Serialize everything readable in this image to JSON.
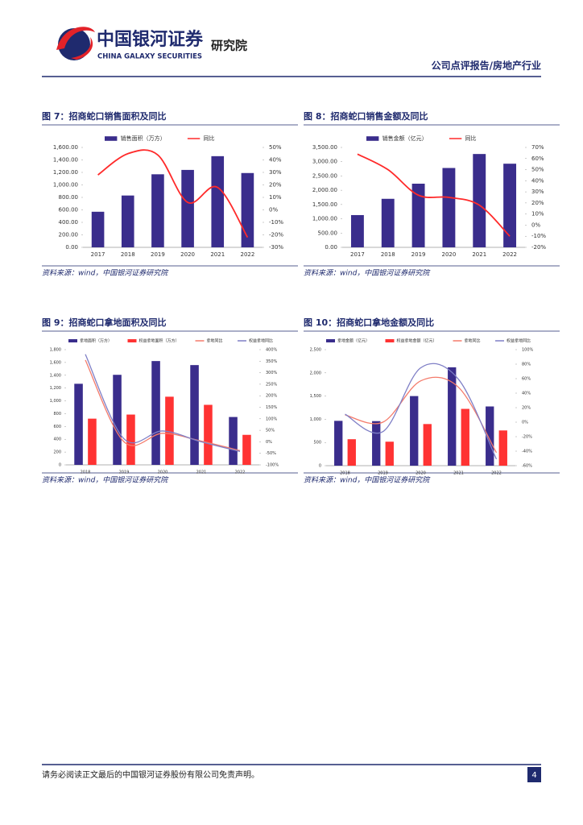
{
  "header": {
    "brand": "中国银河证券",
    "brand_en": "CHINA GALAXY SECURITIES",
    "institute": "研究院",
    "report_type": "公司点评报告/房地产行业"
  },
  "chart_data": [
    {
      "type": "combo",
      "title": "图 7：招商蛇口销售面积及同比",
      "source": "资料来源：wind，中国银河证券研究院",
      "categories": [
        "2017",
        "2018",
        "2019",
        "2020",
        "2021",
        "2022"
      ],
      "series": [
        {
          "name": "销售面积（万方）",
          "type": "bar",
          "color": "#3a2d8c",
          "values": [
            570,
            830,
            1170,
            1240,
            1460,
            1190
          ]
        },
        {
          "name": "同比",
          "type": "line",
          "color": "#ff2a2a",
          "axis": "y2",
          "values": [
            28,
            45,
            44,
            6,
            18,
            -22
          ]
        }
      ],
      "ylim": [
        0,
        1600
      ],
      "yticks": [
        {
          "value": 0,
          "label": "0.00"
        },
        {
          "value": 200,
          "label": "200.00"
        },
        {
          "value": 400,
          "label": "400.00"
        },
        {
          "value": 600,
          "label": "600.00"
        },
        {
          "value": 800,
          "label": "800.00"
        },
        {
          "value": 1000,
          "label": "1,000.00"
        },
        {
          "value": 1200,
          "label": "1,200.00"
        },
        {
          "value": 1400,
          "label": "1,400.00"
        },
        {
          "value": 1600,
          "label": "1,600.00"
        }
      ],
      "y2lim": [
        -30,
        50
      ],
      "y2ticks": [
        {
          "value": -30,
          "label": "-30%"
        },
        {
          "value": -20,
          "label": "-20%"
        },
        {
          "value": -10,
          "label": "-10%"
        },
        {
          "value": 0,
          "label": "0%"
        },
        {
          "value": 10,
          "label": "10%"
        },
        {
          "value": 20,
          "label": "20%"
        },
        {
          "value": 30,
          "label": "30%"
        },
        {
          "value": 40,
          "label": "40%"
        },
        {
          "value": 50,
          "label": "50%"
        }
      ]
    },
    {
      "type": "combo",
      "title": "图 8：招商蛇口销售金额及同比",
      "source": "资料来源：wind，中国银河证券研究院",
      "categories": [
        "2017",
        "2018",
        "2019",
        "2020",
        "2021",
        "2022"
      ],
      "series": [
        {
          "name": "销售金额（亿元）",
          "type": "bar",
          "color": "#3a2d8c",
          "values": [
            1130,
            1700,
            2230,
            2780,
            3270,
            2930
          ]
        },
        {
          "name": "同比",
          "type": "line",
          "color": "#ff2a2a",
          "axis": "y2",
          "values": [
            64,
            50,
            27,
            25,
            18,
            -10
          ]
        }
      ],
      "ylim": [
        0,
        3500
      ],
      "yticks": [
        {
          "value": 0,
          "label": "0.00"
        },
        {
          "value": 500,
          "label": "500.00"
        },
        {
          "value": 1000,
          "label": "1,000.00"
        },
        {
          "value": 1500,
          "label": "1,500.00"
        },
        {
          "value": 2000,
          "label": "2,000.00"
        },
        {
          "value": 2500,
          "label": "2,500.00"
        },
        {
          "value": 3000,
          "label": "3,000.00"
        },
        {
          "value": 3500,
          "label": "3,500.00"
        }
      ],
      "y2lim": [
        -20,
        70
      ],
      "y2ticks": [
        {
          "value": -20,
          "label": "-20%"
        },
        {
          "value": -10,
          "label": "-10%"
        },
        {
          "value": 0,
          "label": "0%"
        },
        {
          "value": 10,
          "label": "10%"
        },
        {
          "value": 20,
          "label": "20%"
        },
        {
          "value": 30,
          "label": "30%"
        },
        {
          "value": 40,
          "label": "40%"
        },
        {
          "value": 50,
          "label": "50%"
        },
        {
          "value": 60,
          "label": "60%"
        },
        {
          "value": 70,
          "label": "70%"
        }
      ]
    },
    {
      "type": "combo",
      "title": "图 9：招商蛇口拿地面积及同比",
      "source": "资料来源：wind，中国银河证券研究院",
      "categories": [
        "2018",
        "2019",
        "2020",
        "2021",
        "2022"
      ],
      "series": [
        {
          "name": "拿地面积（万方）",
          "type": "bar",
          "color": "#3a2d8c",
          "values": [
            1267,
            1407,
            1622,
            1559,
            748
          ]
        },
        {
          "name": "权益拿地面积（万方）",
          "type": "bar",
          "color": "#ff3333",
          "values": [
            722,
            786,
            1065,
            938,
            469
          ]
        },
        {
          "name": "拿地同比",
          "type": "line",
          "color": "#f47b6b",
          "axis": "y2",
          "values": [
            355,
            0,
            37,
            3,
            -38
          ]
        },
        {
          "name": "权益拿地同比",
          "type": "line",
          "color": "#7f7fc6",
          "axis": "y2",
          "values": [
            380,
            13,
            47,
            0,
            -42
          ]
        }
      ],
      "ylim": [
        0,
        1800
      ],
      "yticks": [
        0,
        200,
        400,
        600,
        800,
        {
          "value": 1000,
          "label": "1,000"
        },
        {
          "value": 1200,
          "label": "1,200"
        },
        {
          "value": 1400,
          "label": "1,400"
        },
        {
          "value": 1600,
          "label": "1,600"
        },
        {
          "value": 1800,
          "label": "1,800"
        }
      ],
      "y2lim": [
        -100,
        400
      ],
      "y2ticks": [
        {
          "value": -100,
          "label": "-100%"
        },
        {
          "value": -50,
          "label": "-50%"
        },
        {
          "value": 0,
          "label": "0%"
        },
        {
          "value": 50,
          "label": "50%"
        },
        {
          "value": 100,
          "label": "100%"
        },
        {
          "value": 150,
          "label": "150%"
        },
        {
          "value": 200,
          "label": "200%"
        },
        {
          "value": 250,
          "label": "250%"
        },
        {
          "value": 300,
          "label": "300%"
        },
        {
          "value": 350,
          "label": "350%"
        },
        {
          "value": 400,
          "label": "400%"
        }
      ]
    },
    {
      "type": "combo",
      "title": "图 10：招商蛇口拿地金额及同比",
      "source": "资料来源：wind，中国银河证券研究院",
      "categories": [
        "2018",
        "2019",
        "2020",
        "2021",
        "2022"
      ],
      "series": [
        {
          "name": "拿地金额（亿元）",
          "type": "bar",
          "color": "#3a2d8c",
          "values": [
            966,
            960,
            1500,
            2120,
            1276
          ]
        },
        {
          "name": "权益拿地金额（亿元）",
          "type": "bar",
          "color": "#ff3333",
          "values": [
            570,
            517,
            897,
            1224,
            759
          ]
        },
        {
          "name": "拿地同比",
          "type": "line",
          "color": "#f47b6b",
          "axis": "y2",
          "values": [
            10,
            0,
            57,
            48,
            -42
          ]
        },
        {
          "name": "权益拿地同比",
          "type": "line",
          "color": "#7f7fc6",
          "axis": "y2",
          "values": [
            11,
            -13,
            75,
            59,
            -51
          ]
        }
      ],
      "ylim": [
        0,
        2500
      ],
      "yticks": [
        0,
        500,
        {
          "value": 1000,
          "label": "1,000"
        },
        {
          "value": 1500,
          "label": "1,500"
        },
        {
          "value": 2000,
          "label": "2,000"
        },
        {
          "value": 2500,
          "label": "2,500"
        }
      ],
      "y2lim": [
        -60,
        100
      ],
      "y2ticks": [
        {
          "value": -60,
          "label": "-60%"
        },
        {
          "value": -40,
          "label": "-40%"
        },
        {
          "value": -20,
          "label": "-20%"
        },
        {
          "value": 0,
          "label": "0%"
        },
        {
          "value": 20,
          "label": "20%"
        },
        {
          "value": 40,
          "label": "40%"
        },
        {
          "value": 60,
          "label": "60%"
        },
        {
          "value": 80,
          "label": "80%"
        },
        {
          "value": 100,
          "label": "100%"
        }
      ]
    }
  ],
  "footer": {
    "disclaimer": "请务必阅读正文最后的中国银河证券股份有限公司免责声明。",
    "page": "4"
  }
}
